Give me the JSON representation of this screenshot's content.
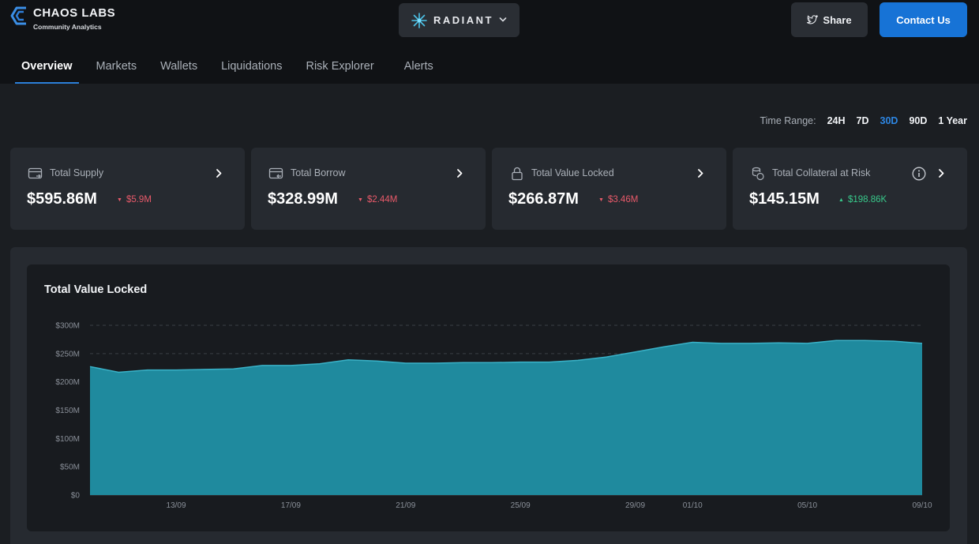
{
  "brand": {
    "title": "CHAOS LABS",
    "subtitle": "Community Analytics",
    "logo_icon": "chaos-labs-logo"
  },
  "protocol": {
    "name": "RADIANT",
    "icon": "radiant-star-icon"
  },
  "actions": {
    "share_label": "Share",
    "contact_label": "Contact Us"
  },
  "nav": {
    "tabs": [
      {
        "label": "Overview",
        "active": true
      },
      {
        "label": "Markets",
        "active": false
      },
      {
        "label": "Wallets",
        "active": false
      },
      {
        "label": "Liquidations",
        "active": false
      },
      {
        "label": "Risk Explorer",
        "active": false
      },
      {
        "label": "Alerts",
        "active": false
      }
    ]
  },
  "time_range": {
    "label": "Time Range:",
    "options": [
      "24H",
      "7D",
      "30D",
      "90D",
      "1 Year"
    ],
    "selected": "30D"
  },
  "stats": [
    {
      "label": "Total Supply",
      "value": "$595.86M",
      "delta": "$5.9M",
      "direction": "down",
      "icon": "supply-card-icon"
    },
    {
      "label": "Total Borrow",
      "value": "$328.99M",
      "delta": "$2.44M",
      "direction": "down",
      "icon": "borrow-card-icon"
    },
    {
      "label": "Total Value Locked",
      "value": "$266.87M",
      "delta": "$3.46M",
      "direction": "down",
      "icon": "lock-icon"
    },
    {
      "label": "Total Collateral at Risk",
      "value": "$145.15M",
      "delta": "$198.86K",
      "direction": "up",
      "icon": "coins-icon",
      "info_icon": "info-icon"
    }
  ],
  "colors": {
    "accent": "#1773d6",
    "area_fill": "#1f8a9e",
    "area_stroke": "#3ab2c8",
    "down": "#e85a6a",
    "up": "#38c98b"
  },
  "chart_data": {
    "type": "area",
    "title": "Total Value Locked",
    "xlabel": "",
    "ylabel": "",
    "ylim": [
      0,
      300
    ],
    "y_unit": "M",
    "y_ticks": [
      "$0",
      "$50M",
      "$100M",
      "$150M",
      "$200M",
      "$250M",
      "$300M"
    ],
    "y_tick_values": [
      0,
      50,
      100,
      150,
      200,
      250,
      300
    ],
    "x": [
      "10/09",
      "11/09",
      "12/09",
      "13/09",
      "14/09",
      "15/09",
      "16/09",
      "17/09",
      "18/09",
      "19/09",
      "20/09",
      "21/09",
      "22/09",
      "23/09",
      "24/09",
      "25/09",
      "26/09",
      "27/09",
      "28/09",
      "29/09",
      "30/09",
      "01/10",
      "02/10",
      "03/10",
      "04/10",
      "05/10",
      "06/10",
      "07/10",
      "08/10",
      "09/10"
    ],
    "x_tick_labels": [
      "13/09",
      "17/09",
      "21/09",
      "25/09",
      "29/09",
      "01/10",
      "05/10",
      "09/10"
    ],
    "series": [
      {
        "values": [
          227,
          217,
          221,
          221,
          222,
          223,
          229,
          229,
          232,
          239,
          237,
          233,
          233,
          234,
          234,
          235,
          235,
          238,
          244,
          253,
          262,
          270,
          268,
          268,
          269,
          268,
          273,
          273,
          272,
          268
        ]
      }
    ],
    "grid": "horizontal-dashed",
    "legend": "none"
  }
}
